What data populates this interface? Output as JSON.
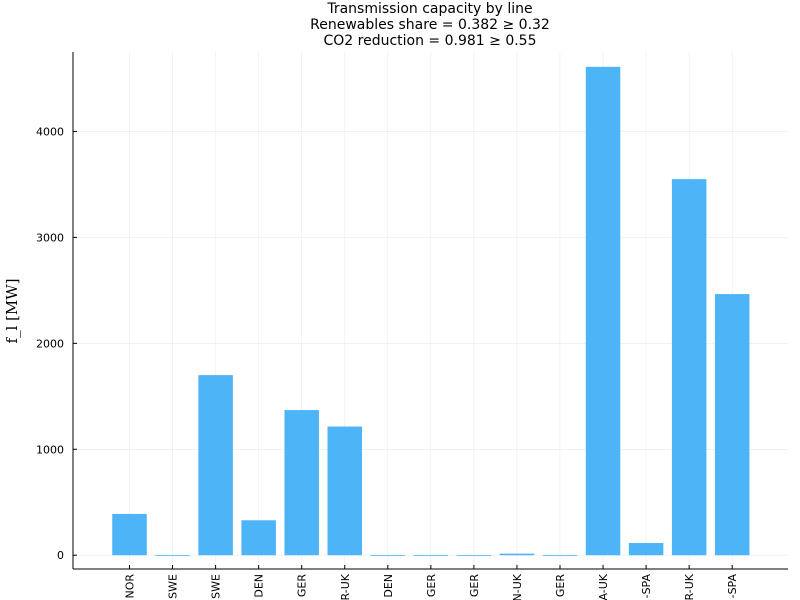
{
  "chart_data": {
    "type": "bar",
    "title_lines": [
      "Transmission capacity by line",
      "Renewables share = 0.382 ≥ 0.32",
      "CO2 reduction = 0.981 ≥ 0.55"
    ],
    "xlabel": "",
    "ylabel": "f_l [MW]",
    "ylim": [
      -130,
      4750
    ],
    "yticks": [
      0,
      1000,
      2000,
      3000,
      4000
    ],
    "categories": [
      "NOR",
      "SWE",
      "SWE",
      "DEN",
      "GER",
      "R-UK",
      "DEN",
      "GER",
      "GER",
      "N-UK",
      "GER",
      "A-UK",
      "-SPA",
      "R-UK",
      "-SPA"
    ],
    "values": [
      390,
      0,
      1700,
      330,
      1370,
      1215,
      0,
      0,
      0,
      15,
      0,
      4610,
      115,
      3550,
      2465
    ],
    "bar_color": "#4cb4f7",
    "grid": true,
    "legend": "none"
  }
}
